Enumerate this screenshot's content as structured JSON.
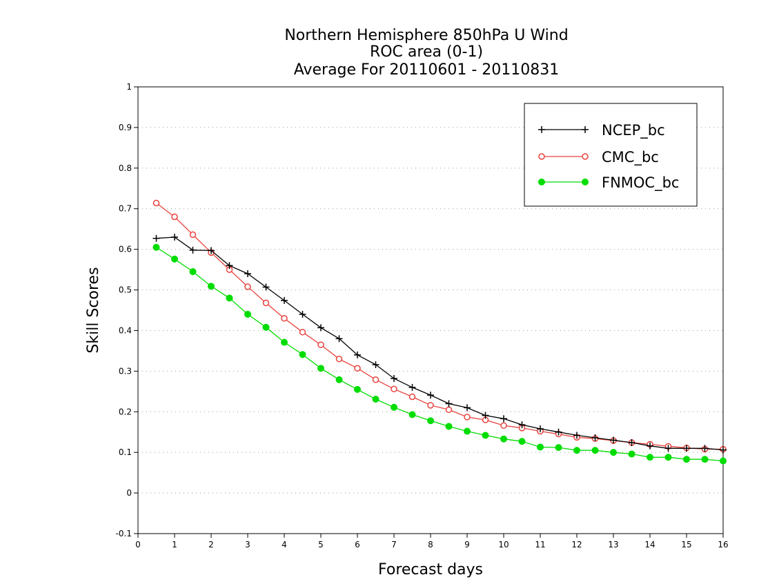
{
  "chart_data": {
    "type": "line",
    "title": [
      "Northern Hemisphere 850hPa U Wind",
      "ROC area (0-1)",
      "Average For 20110601 - 20110831"
    ],
    "xlabel": "Forecast days",
    "ylabel": "Skill Scores",
    "xlim": [
      0,
      16
    ],
    "ylim": [
      -0.1,
      1
    ],
    "xticks": [
      "0",
      "1",
      "2",
      "3",
      "4",
      "5",
      "6",
      "7",
      "8",
      "9",
      "10",
      "11",
      "12",
      "13",
      "14",
      "15",
      "16"
    ],
    "yticks": [
      "-0.1",
      "0",
      "0.1",
      "0.2",
      "0.3",
      "0.4",
      "0.5",
      "0.6",
      "0.7",
      "0.8",
      "0.9",
      "1"
    ],
    "grid": "horizontal dotted",
    "legend_position": "top-right",
    "x": [
      0.5,
      1,
      1.5,
      2,
      2.5,
      3,
      3.5,
      4,
      4.5,
      5,
      5.5,
      6,
      6.5,
      7,
      7.5,
      8,
      8.5,
      9,
      9.5,
      10,
      10.5,
      11,
      11.5,
      12,
      12.5,
      13,
      13.5,
      14,
      14.5,
      15,
      15.5,
      16
    ],
    "series": [
      {
        "name": "NCEP_bc",
        "color": "#000000",
        "marker": "plus",
        "values": [
          0.627,
          0.63,
          0.598,
          0.597,
          0.56,
          0.54,
          0.507,
          0.474,
          0.44,
          0.407,
          0.38,
          0.34,
          0.316,
          0.282,
          0.26,
          0.241,
          0.22,
          0.21,
          0.191,
          0.183,
          0.168,
          0.158,
          0.15,
          0.142,
          0.136,
          0.13,
          0.124,
          0.116,
          0.11,
          0.11,
          0.11,
          0.106
        ]
      },
      {
        "name": "CMC_bc",
        "color": "#e8413c",
        "marker": "open-circle",
        "values": [
          0.714,
          0.68,
          0.636,
          0.592,
          0.55,
          0.508,
          0.468,
          0.43,
          0.396,
          0.365,
          0.33,
          0.307,
          0.279,
          0.256,
          0.237,
          0.216,
          0.205,
          0.187,
          0.18,
          0.166,
          0.16,
          0.152,
          0.145,
          0.137,
          0.134,
          0.129,
          0.124,
          0.12,
          0.115,
          0.111,
          0.108,
          0.108
        ]
      },
      {
        "name": "FNMOC_bc",
        "color": "#00dd00",
        "marker": "filled-circle",
        "values": [
          0.605,
          0.576,
          0.545,
          0.509,
          0.48,
          0.44,
          0.408,
          0.371,
          0.341,
          0.307,
          0.279,
          0.255,
          0.231,
          0.211,
          0.193,
          0.178,
          0.164,
          0.152,
          0.142,
          0.133,
          0.127,
          0.113,
          0.112,
          0.105,
          0.105,
          0.1,
          0.096,
          0.088,
          0.088,
          0.083,
          0.083,
          0.079
        ]
      }
    ]
  }
}
